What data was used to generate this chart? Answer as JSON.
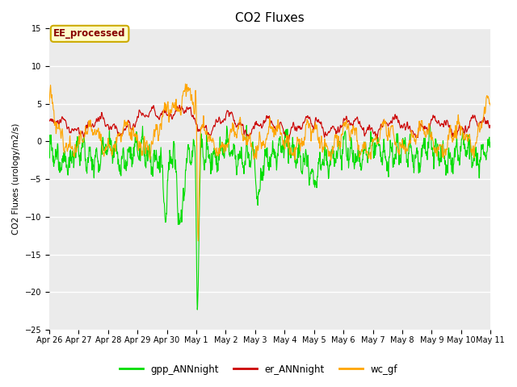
{
  "title": "CO2 Fluxes",
  "ylabel": "CO2 Fluxes (urology/m2/s)",
  "ylim": [
    -25,
    15
  ],
  "yticks": [
    -25,
    -20,
    -15,
    -10,
    -5,
    0,
    5,
    10,
    15
  ],
  "background_color": "#ebebeb",
  "annotation_text": "EE_processed",
  "annotation_bg": "#ffffcc",
  "annotation_border": "#ccaa00",
  "annotation_text_color": "#880000",
  "legend_entries": [
    "gpp_ANNnight",
    "er_ANNnight",
    "wc_gf"
  ],
  "line_colors": [
    "#00dd00",
    "#cc0000",
    "#ffa500"
  ],
  "line_width": 0.8,
  "tick_label_fontsize": 7,
  "title_fontsize": 11,
  "xtick_labels": [
    "Apr 26",
    "Apr 27",
    "Apr 28",
    "Apr 29",
    "Apr 30",
    "May 1",
    "May 2",
    "May 3",
    "May 4",
    "May 5",
    "May 6",
    "May 7",
    "May 8",
    "May 9",
    "May 10",
    "May 11"
  ],
  "xtick_positions": [
    0,
    1,
    2,
    3,
    4,
    5,
    6,
    7,
    8,
    9,
    10,
    11,
    12,
    13,
    14,
    15
  ],
  "grid_color": "#ffffff",
  "num_points": 2000,
  "seed": 1234
}
